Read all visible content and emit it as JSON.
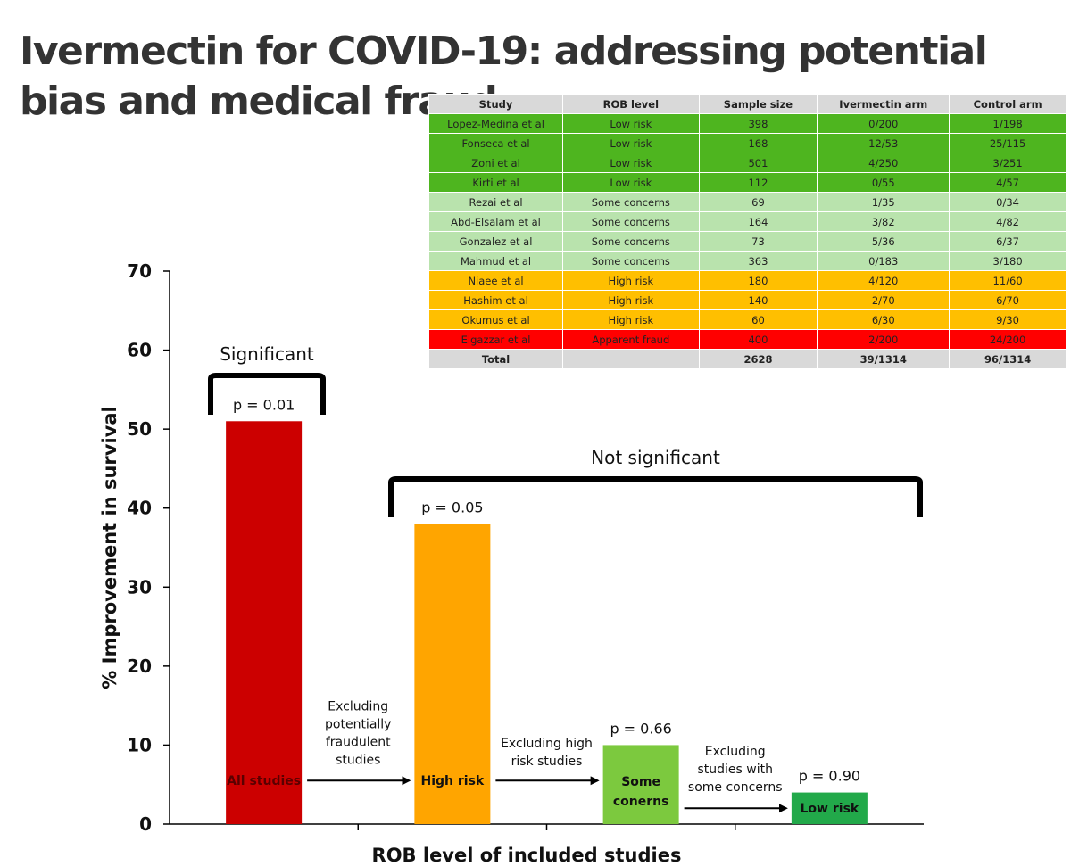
{
  "title": "Ivermectin for COVID-19: addressing potential bias and medical fraud",
  "table": {
    "headers": [
      "Study",
      "ROB level",
      "Sample size",
      "Ivermectin arm",
      "Control arm"
    ],
    "rows": [
      {
        "level": "low",
        "cells": [
          "Lopez-Medina et al",
          "Low risk",
          "398",
          "0/200",
          "1/198"
        ]
      },
      {
        "level": "low",
        "cells": [
          "Fonseca et al",
          "Low risk",
          "168",
          "12/53",
          "25/115"
        ]
      },
      {
        "level": "low",
        "cells": [
          "Zoni et al",
          "Low risk",
          "501",
          "4/250",
          "3/251"
        ]
      },
      {
        "level": "low",
        "cells": [
          "Kirti et al",
          "Low risk",
          "112",
          "0/55",
          "4/57"
        ]
      },
      {
        "level": "some",
        "cells": [
          "Rezai et al",
          "Some concerns",
          "69",
          "1/35",
          "0/34"
        ]
      },
      {
        "level": "some",
        "cells": [
          "Abd-Elsalam et al",
          "Some concerns",
          "164",
          "3/82",
          "4/82"
        ]
      },
      {
        "level": "some",
        "cells": [
          "Gonzalez et al",
          "Some concerns",
          "73",
          "5/36",
          "6/37"
        ]
      },
      {
        "level": "some",
        "cells": [
          "Mahmud et al",
          "Some concerns",
          "363",
          "0/183",
          "3/180"
        ]
      },
      {
        "level": "high",
        "cells": [
          "Niaee et al",
          "High risk",
          "180",
          "4/120",
          "11/60"
        ]
      },
      {
        "level": "high",
        "cells": [
          "Hashim et al",
          "High risk",
          "140",
          "2/70",
          "6/70"
        ]
      },
      {
        "level": "high",
        "cells": [
          "Okumus et al",
          "High risk",
          "60",
          "6/30",
          "9/30"
        ]
      },
      {
        "level": "fraud",
        "cells": [
          "Elgazzar et al",
          "Apparent fraud",
          "400",
          "2/200",
          "24/200"
        ]
      },
      {
        "level": "total",
        "cells": [
          "Total",
          "",
          "2628",
          "39/1314",
          "96/1314"
        ]
      }
    ]
  },
  "chart_data": {
    "type": "bar",
    "xlabel": "ROB level of included studies",
    "ylabel": "% Improvement in survival",
    "ylim": [
      0,
      70
    ],
    "yticks": [
      0,
      10,
      20,
      30,
      40,
      50,
      60,
      70
    ],
    "grid": false,
    "categories": [
      "All studies",
      "High risk",
      "Some conerns",
      "Low risk"
    ],
    "values": [
      51,
      38,
      10,
      4
    ],
    "p_values": [
      "p = 0.01",
      "p = 0.05",
      "p = 0.66",
      "p = 0.90"
    ],
    "colors": [
      "#cc0000",
      "#ffa500",
      "#7cc93e",
      "#22a94a"
    ],
    "label_colors": [
      "#5a0000",
      "#111111",
      "#111111",
      "#111111"
    ],
    "transitions": [
      "Excluding potentially fraudulent studies",
      "Excluding high risk studies",
      "Excluding studies with some concerns"
    ],
    "significance_brackets": [
      {
        "label": "Significant",
        "covers": [
          "All studies"
        ]
      },
      {
        "label": "Not significant",
        "covers": [
          "High risk",
          "Some conerns",
          "Low risk"
        ]
      }
    ]
  }
}
